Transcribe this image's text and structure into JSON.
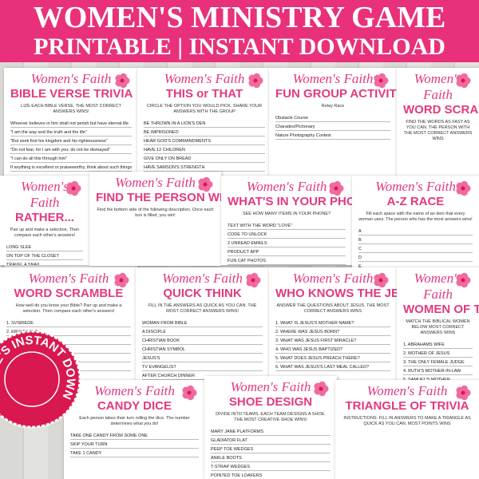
{
  "header": {
    "title": "WOMEN'S MINISTRY GAME",
    "subtitle": "PRINTABLE | INSTANT DOWNLOAD"
  },
  "cards": [
    {
      "script": "Women's Faith",
      "title": "BIBLE VERSE TRIVIA",
      "subtitle": "LIZE EACH BIBLE VERSE. THE MOST CORRECT ANSWERS WINS!",
      "items": [
        "Whoever believes in him shall not perish but have eternal life",
        "\"I am the way and the truth and the life\"",
        "\"But seek first his kingdom and his righteousness\"",
        "\"Do not fear, for I am with you; do not be dismayed\"",
        "\"I can do all this through him\"",
        "If anything is excellent or praiseworthy, think about such things"
      ]
    },
    {
      "script": "Women's Faith",
      "title": "THIS or THAT",
      "subtitle": "CIRCLE THE OPTION YOU WOULD PICK. SHARE YOUR ANSWERS WITH THE GROUP",
      "items": [
        "BE THROWN IN A LION'S DEN",
        "BE IMPRISONED",
        "HEAR GOD'S COMMANDMENTS",
        "HAVE 12 CHILDREN",
        "GIVE ONLY ON BREAD",
        "HAVE SAMSON'S STRENGTH",
        "BE A SHEPHERD"
      ]
    },
    {
      "script": "Women's Faith",
      "title": "FUN GROUP ACTIVITIES",
      "subtitle": "Relay Race",
      "items": [
        "Obstacle Course",
        "Charades/Pictionary",
        "Nature Photography Contest"
      ]
    },
    {
      "script": "Women's Faith",
      "title": "WORD SCRAMBLE",
      "subtitle": "FIND THE WORDS AS FAST AS YOU CAN. THE PERSON WITH THE MOST CORRECT ANSWERS WINS",
      "items": []
    },
    {
      "script": "Women's Faith",
      "title": "RATHER...",
      "subtitle": "Pair up and make a selection. Then compare each other's answers!",
      "items": [
        "LONG SLEE",
        "ON TOP OF THE CLOSET",
        "TRAVEL A SNAIL",
        "ON TOP OF THE HILL",
        "ONLY THINGS"
      ]
    },
    {
      "script": "Women's Faith",
      "title": "FIND THE PERSON WHO...",
      "subtitle": "Find the bottom side of the following description. Once each box is filled, you win!",
      "items": []
    },
    {
      "script": "Women's Faith",
      "title": "WHAT'S IN YOUR PHONE",
      "subtitle": "SEE HOW MANY ITEMS IN YOUR PHONE?",
      "items": [
        "TEXT WITH THE WORD \"LOVE\"",
        "CODE TO UNLOCK",
        "2 UNREAD EMAILS",
        "PRODUCT APP",
        "FUN CAT PHOTOS"
      ]
    },
    {
      "script": "Women's Faith",
      "title": "A-Z RACE",
      "subtitle": "Fill each space with the name of an item that every woman uses. The person who has the most answers wins!",
      "items": [
        "A",
        "B",
        "C",
        "D",
        "E",
        "F",
        "G"
      ]
    },
    {
      "script": "Women's Faith",
      "title": "WORD SCRAMBLE",
      "subtitle": "How well do you know your Bible? Pair up and make a selection. Then compare each other's answers!",
      "items": [
        "1. SVSRIEDE",
        "2. ERVLEAONT",
        "3. SMTLETSNAOIN",
        "4. ORNNAS",
        "5. SBISSE",
        "6. BWSERHE"
      ]
    },
    {
      "script": "Women's Faith",
      "title": "QUICK THINK",
      "subtitle": "FILL IN THE ANSWERS AS QUICK AS YOU CAN. THE MOST CORRECT ANSWERS WINS!",
      "items": [
        "WOMAN FROM BIBLE",
        "A DISCIPLE",
        "CHRISTIAN BOOK",
        "CHRISTIAN SYMBOL",
        "JESUS'S",
        "TV EVANGELIST",
        "AFTER CHURCH DINNER"
      ]
    },
    {
      "script": "Women's Faith",
      "title": "WHO KNOWS THE JESUS BEST",
      "subtitle": "ANSWER THE QUESTIONS ABOUT JESUS. THE MOST CORRECT ANSWERS WINS",
      "items": [
        "1. WHAT IS JESUS'S MOTHER NAME?",
        "2. WHERE WAS JESUS BORN?",
        "3. WHAT WAS JESUS FIRST MIRACLE?",
        "4. WHO WAS JESUS BAPTIZED?",
        "5. WHAT DOES JESUS PREACH THERE?",
        "6. WHAT WAS JESUS'S LAST MEAL CALLED?"
      ]
    },
    {
      "script": "Women's Faith",
      "title": "WOMEN OF THE BIBLE",
      "subtitle": "MATCH THE BIBLICAL WOMEN BELOW MOST CORRECT ANSWERS WINS",
      "items": [
        "1. ABRAHAMS WIFE",
        "2. MOTHER OF JESUS",
        "3. THE ONLY FEMALE JUDGE",
        "4. RUTH'S MOTHER-IN-LAW",
        "5. SAMUEL'S MOTHER",
        "6. DAVID'S WIFE",
        "7. WIDOW OF URIAH"
      ]
    },
    {
      "script": "Women's Faith",
      "title": "CANDY DICE",
      "subtitle": "Each person takes their turn rolling the dice. The number determines what you do!",
      "items": [
        "TAKE ONE CANDY FROM SOME ONE",
        "SKIP YOUR TURN",
        "TAKE 1 CANDY"
      ]
    },
    {
      "script": "Women's Faith",
      "title": "SHOE DESIGN",
      "subtitle": "DIVIDE INTO TEAMS. EACH TEAM DESIGNS A SHOE. THE MOST CREATIVE SHOE WINS!",
      "items": [
        "MARY JANE PLATFORMS",
        "GLADIATOR FLAT",
        "PEEP TOE WEDGES",
        "ANKLE BOOTS",
        "T-STRAP WEDGES",
        "POINTED TOE LOAFERS"
      ]
    },
    {
      "script": "Women's Faith",
      "title": "TRIANGLE OF TRIVIA",
      "subtitle": "INSTRUCTIONS: FILL IN ANSWERS TO MAKE A TRIANGLE AS QUICK AS YOU CAN. MOST POINTS WINS",
      "items": []
    }
  ],
  "seal": "ME'S INSTANT DOWN"
}
